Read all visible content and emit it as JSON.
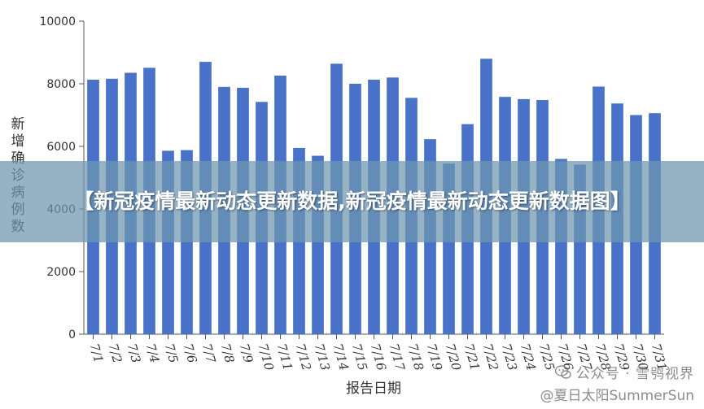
{
  "chart_data": {
    "type": "bar",
    "title": "",
    "xlabel": "报告日期",
    "ylabel": "新增确诊病例数",
    "ylim": [
      0,
      10000
    ],
    "yticks": [
      0,
      2000,
      4000,
      6000,
      8000,
      10000
    ],
    "grid": false,
    "bar_color": "#4a72c8",
    "categories": [
      "7/1",
      "7/2",
      "7/3",
      "7/4",
      "7/5",
      "7/6",
      "7/7",
      "7/8",
      "7/9",
      "7/10",
      "7/11",
      "7/12",
      "7/13",
      "7/14",
      "7/15",
      "7/16",
      "7/17",
      "7/18",
      "7/19",
      "7/20",
      "7/21",
      "7/22",
      "7/23",
      "7/24",
      "7/25",
      "7/26",
      "7/27",
      "7/28",
      "7/29",
      "7/30",
      "7/31"
    ],
    "values": [
      8130,
      8160,
      8350,
      8510,
      5860,
      5880,
      8700,
      7900,
      7870,
      7420,
      8260,
      5950,
      5700,
      8640,
      8000,
      8130,
      8200,
      7550,
      6230,
      5450,
      6710,
      8800,
      7580,
      7510,
      7480,
      5600,
      5420,
      7910,
      7370,
      7000,
      7060
    ]
  },
  "banner": {
    "text": "【新冠疫情最新动态更新数据,新冠疫情最新动态更新数据图】"
  },
  "watermark": {
    "line1": "公众号 · 雪鸮视界",
    "line2": "@夏日太阳SummerSun",
    "icon": "wechat-icon"
  }
}
